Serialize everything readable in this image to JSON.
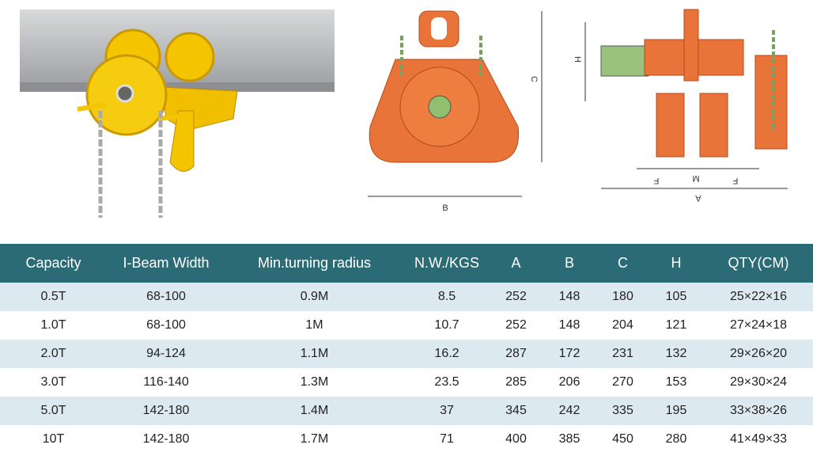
{
  "diagram": {
    "labels": {
      "c": "C",
      "b": "B",
      "h": "H",
      "f_left": "F",
      "m": "M",
      "f_right": "F",
      "a": "A"
    }
  },
  "table": {
    "headers": [
      "Capacity",
      "I-Beam Width",
      "Min.turning radius",
      "N.W./KGS",
      "A",
      "B",
      "C",
      "H",
      "QTY(CM)"
    ],
    "rows": [
      [
        "0.5T",
        "68-100",
        "0.9M",
        "8.5",
        "252",
        "148",
        "180",
        "105",
        "25×22×16"
      ],
      [
        "1.0T",
        "68-100",
        "1M",
        "10.7",
        "252",
        "148",
        "204",
        "121",
        "27×24×18"
      ],
      [
        "2.0T",
        "94-124",
        "1.1M",
        "16.2",
        "287",
        "172",
        "231",
        "132",
        "29×26×20"
      ],
      [
        "3.0T",
        "116-140",
        "1.3M",
        "23.5",
        "285",
        "206",
        "270",
        "153",
        "29×30×24"
      ],
      [
        "5.0T",
        "142-180",
        "1.4M",
        "37",
        "345",
        "242",
        "335",
        "195",
        "33×38×26"
      ],
      [
        "10T",
        "142-180",
        "1.7M",
        "71",
        "400",
        "385",
        "450",
        "280",
        "41×49×33"
      ]
    ]
  }
}
